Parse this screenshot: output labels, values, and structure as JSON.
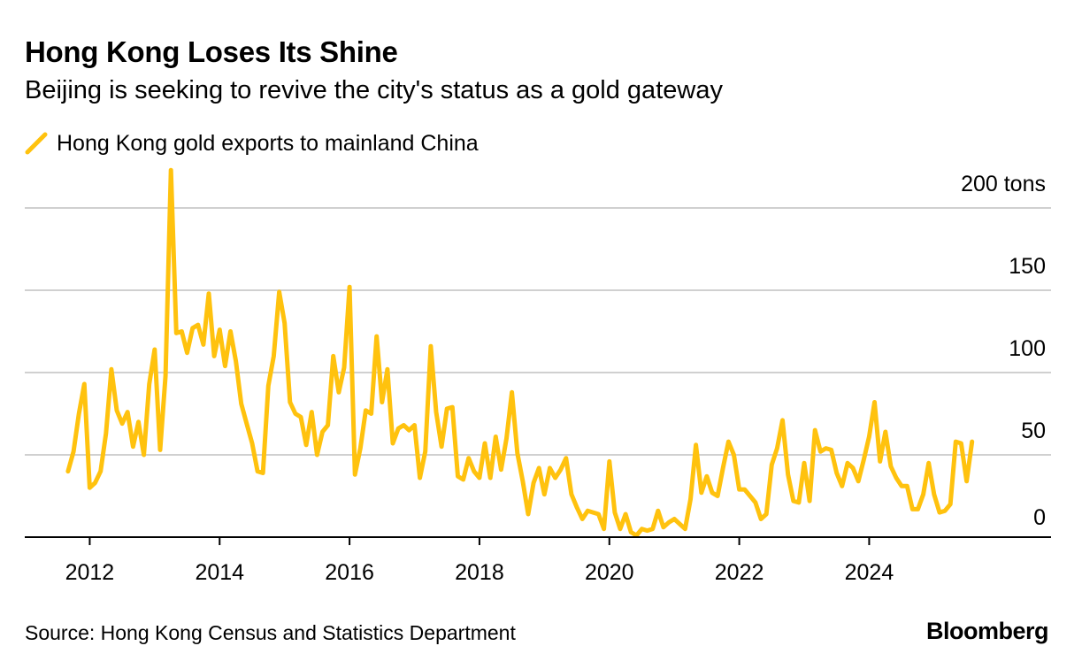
{
  "colors": {
    "line": "#FFC20E",
    "grid": "#D0D0D0",
    "axis": "#000000"
  },
  "brand": "Bloomberg",
  "source": "Source: Hong Kong Census and Statistics Department",
  "chart_data": {
    "type": "line",
    "title": "Hong Kong Loses Its Shine",
    "subtitle": "Beijing is seeking to revive the city's status as a gold gateway",
    "xlabel": "",
    "ylabel": "",
    "ylim": [
      0,
      200
    ],
    "xlim": [
      2011.0,
      2026.8
    ],
    "grid": true,
    "legend_position": "top-left",
    "y_ticks": [
      {
        "value": 200,
        "label": "200 tons"
      },
      {
        "value": 150,
        "label": "150"
      },
      {
        "value": 100,
        "label": "100"
      },
      {
        "value": 50,
        "label": "50"
      },
      {
        "value": 0,
        "label": "0"
      }
    ],
    "x_ticks": [
      {
        "value": 2012,
        "label": "2012"
      },
      {
        "value": 2014,
        "label": "2014"
      },
      {
        "value": 2016,
        "label": "2016"
      },
      {
        "value": 2018,
        "label": "2018"
      },
      {
        "value": 2020,
        "label": "2020"
      },
      {
        "value": 2022,
        "label": "2022"
      },
      {
        "value": 2024,
        "label": "2024"
      }
    ],
    "series": [
      {
        "name": "Hong Kong gold exports to mainland China",
        "start_year": 2011,
        "start_month": 9,
        "values": [
          40,
          52,
          75,
          93,
          30,
          33,
          40,
          63,
          102,
          77,
          69,
          76,
          55,
          70,
          50,
          93,
          114,
          53,
          98,
          223,
          124,
          125,
          112,
          127,
          129,
          117,
          148,
          110,
          126,
          104,
          125,
          107,
          81,
          69,
          57,
          40,
          39,
          92,
          110,
          149,
          130,
          82,
          75,
          73,
          56,
          76,
          50,
          64,
          68,
          110,
          88,
          103,
          152,
          38,
          54,
          77,
          75,
          122,
          82,
          102,
          57,
          66,
          68,
          65,
          68,
          36,
          52,
          116,
          76,
          55,
          78,
          79,
          37,
          35,
          48,
          40,
          36,
          57,
          36,
          61,
          41,
          60,
          88,
          51,
          34,
          14,
          33,
          42,
          26,
          42,
          36,
          41,
          48,
          26,
          18,
          11,
          16,
          15,
          14,
          5,
          46,
          15,
          5,
          14,
          3,
          1,
          5,
          4,
          5,
          16,
          6,
          9,
          11,
          8,
          5,
          23,
          56,
          27,
          37,
          27,
          25,
          42,
          58,
          50,
          29,
          29,
          25,
          21,
          11,
          14,
          44,
          54,
          71,
          38,
          22,
          21,
          45,
          22,
          65,
          52,
          54,
          53,
          39,
          31,
          45,
          42,
          34,
          47,
          61,
          82,
          46,
          64,
          43,
          36,
          31,
          31,
          17,
          17,
          26,
          45,
          26,
          15,
          16,
          20,
          58,
          57,
          34,
          58
        ]
      }
    ]
  }
}
